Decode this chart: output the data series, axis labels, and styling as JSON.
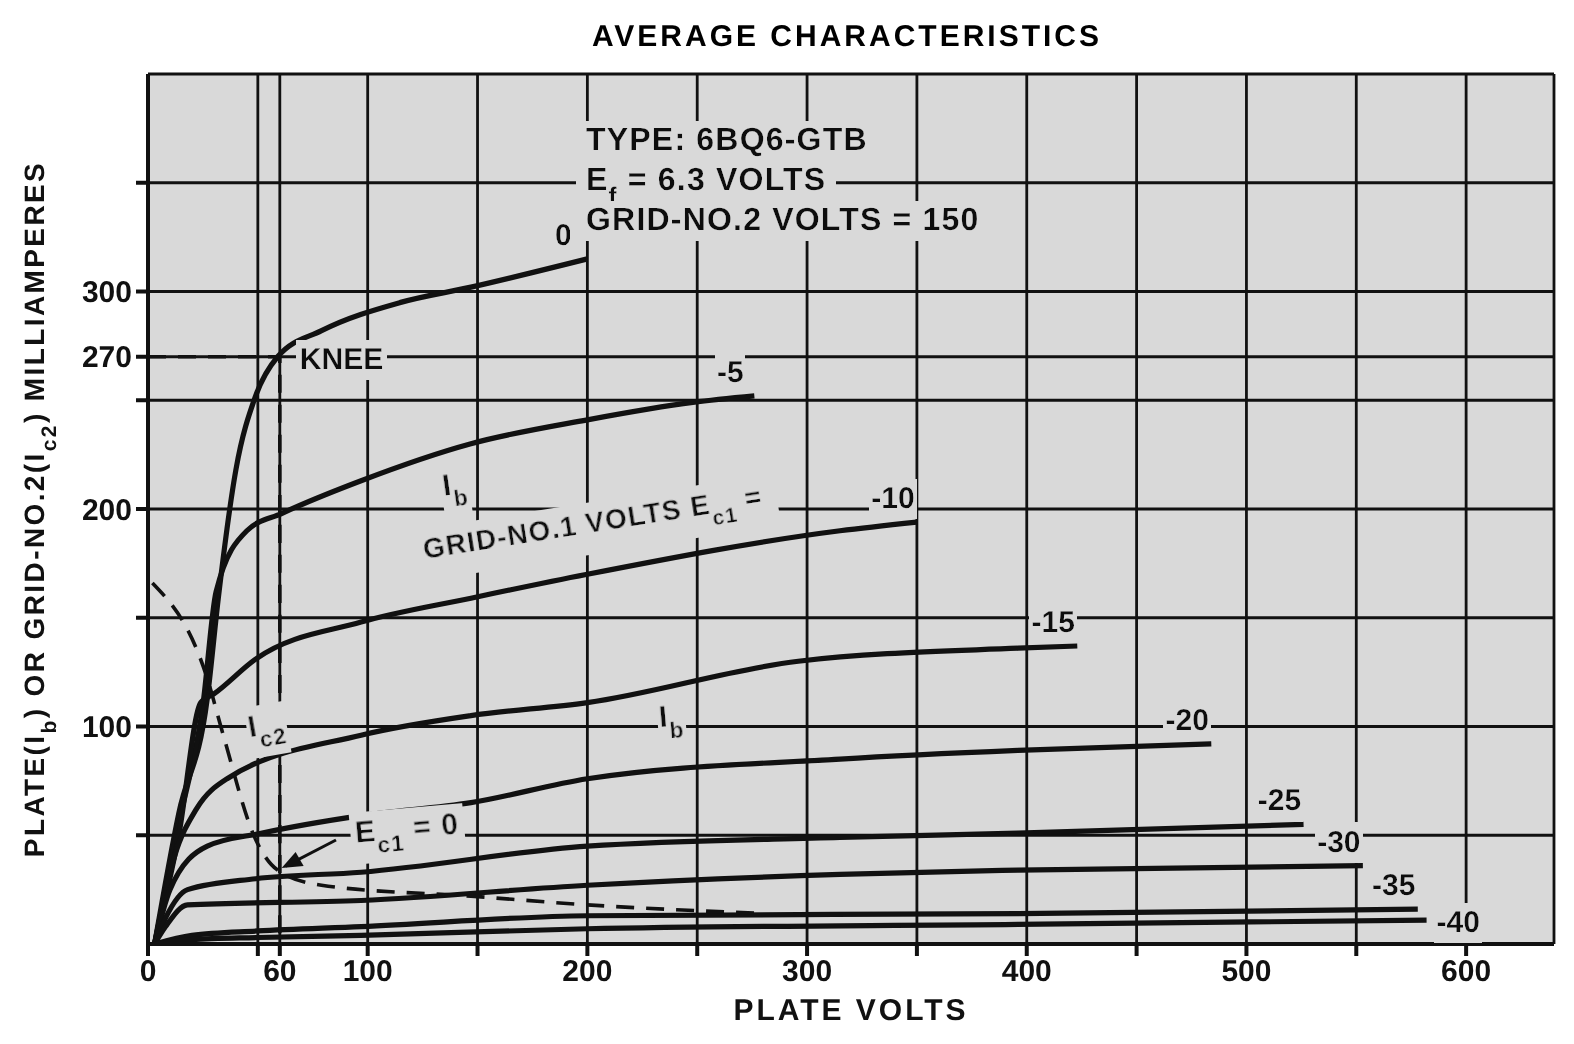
{
  "chart_data": {
    "type": "line",
    "title": "AVERAGE CHARACTERISTICS",
    "xlabel": "PLATE VOLTS",
    "ylabel": "PLATE(I$_{b}$) OR GRID-NO.2(I$_{c2}$) MILLIAMPERES",
    "xlim": [
      0,
      640
    ],
    "ylim": [
      0,
      400
    ],
    "xticks": [
      0,
      {
        "value": 50,
        "label": null
      },
      60,
      100,
      {
        "value": 150,
        "label": null
      },
      200,
      {
        "value": 250,
        "label": null
      },
      300,
      {
        "value": 350,
        "label": null
      },
      400,
      {
        "value": 450,
        "label": null
      },
      500,
      {
        "value": 550,
        "label": null
      },
      600
    ],
    "yticks": [
      {
        "value": 50,
        "label": null
      },
      100,
      {
        "value": 150,
        "label": null
      },
      200,
      {
        "value": 250,
        "label": null
      },
      270,
      300,
      {
        "value": 350,
        "label": null
      }
    ],
    "grid": true,
    "series": [
      {
        "name": "0",
        "color": "#111111",
        "x": [
          3,
          14,
          27,
          32,
          40,
          49,
          59,
          79,
          115,
          147,
          200
        ],
        "values": [
          0,
          60,
          113,
          159,
          218,
          252,
          270,
          282,
          295,
          302,
          315
        ]
      },
      {
        "name": "-5",
        "color": "#111111",
        "x": [
          3,
          14,
          25,
          31,
          45,
          61,
          97,
          147,
          200,
          248,
          276
        ],
        "values": [
          0,
          55,
          110,
          162,
          190,
          198,
          213,
          230,
          241,
          249,
          252
        ]
      },
      {
        "name": "-10",
        "color": "#111111",
        "x": [
          3,
          14,
          24,
          30,
          49,
          97,
          147,
          200,
          315,
          350
        ],
        "values": [
          0,
          50,
          111,
          115,
          131,
          148,
          159,
          170,
          190,
          194
        ]
      },
      {
        "name": "-15",
        "color": "#111111",
        "x": [
          3,
          12,
          22,
          36,
          97,
          147,
          200,
          296,
          396,
          423
        ],
        "values": [
          0,
          40,
          62,
          76,
          96,
          105,
          111,
          130,
          136,
          137
        ]
      },
      {
        "name": "-20",
        "color": "#111111",
        "x": [
          3,
          10,
          27,
          52,
          97,
          147,
          200,
          315,
          396,
          484
        ],
        "values": [
          0,
          25,
          45,
          51,
          59,
          65,
          76,
          85,
          89,
          92
        ]
      },
      {
        "name": "-25",
        "color": "#111111",
        "x": [
          3,
          8,
          18,
          49,
          97,
          200,
          315,
          396,
          526
        ],
        "values": [
          0,
          12,
          25,
          30,
          33,
          45,
          49,
          51,
          55
        ]
      },
      {
        "name": "-30",
        "color": "#111111",
        "x": [
          3,
          8,
          18,
          97,
          200,
          315,
          396,
          553
        ],
        "values": [
          0,
          8,
          18,
          20,
          27,
          32,
          34,
          36
        ]
      },
      {
        "name": "-35",
        "color": "#111111",
        "x": [
          3,
          20,
          50,
          97,
          200,
          396,
          578
        ],
        "values": [
          0,
          4,
          6,
          8,
          13,
          14,
          16
        ]
      },
      {
        "name": "-40",
        "color": "#111111",
        "x": [
          3,
          20,
          50,
          97,
          200,
          396,
          582
        ],
        "values": [
          0,
          2,
          3,
          4,
          7,
          9,
          11
        ]
      },
      {
        "color": "#111111",
        "line_style": "dashed",
        "x": [
          2,
          27,
          34,
          49,
          59,
          79,
          147,
          200,
          280
        ],
        "values": [
          166,
          122,
          97,
          48,
          34,
          27,
          22,
          18,
          14
        ]
      },
      {
        "color": "#111111",
        "line_style": "dashed",
        "x": [
          0,
          60,
          60
        ],
        "values": [
          270,
          270,
          0
        ]
      }
    ],
    "annotations": [
      "TYPE: 6BQ6-GTB",
      "E$_{f}$ = 6.3 VOLTS",
      "GRID-NO.2 VOLTS = 150",
      "I$_{b}$",
      "I$_{b}$",
      "E$_{c1}$ = 0",
      "I$_{c2}$",
      "GRID-NO.1 VOLTS E$_{c1}$ =",
      {
        "text": "KNEE",
        "x": 60,
        "y": 270
      }
    ]
  }
}
